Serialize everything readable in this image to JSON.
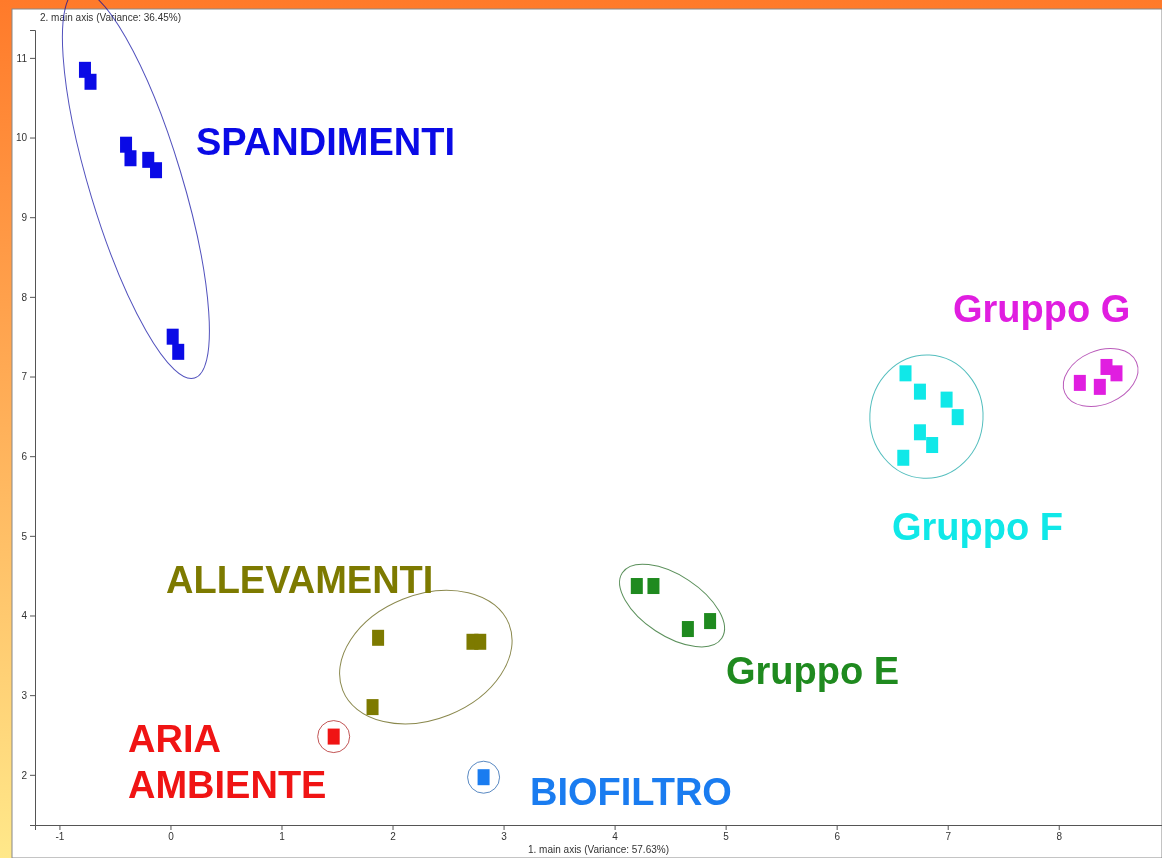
{
  "chart_data": {
    "type": "scatter",
    "xlabel": "1. main axis (Variance: 57.63%)",
    "ylabel": "2. main axis (Variance: 36.45%)",
    "xlim": [
      -1.22,
      8.93
    ],
    "ylim": [
      1.37,
      11.35
    ],
    "xticks": [
      -1,
      0,
      1,
      2,
      3,
      4,
      5,
      6,
      7,
      8
    ],
    "yticks": [
      2,
      3,
      4,
      5,
      6,
      7,
      8,
      9,
      10,
      11
    ],
    "grid": false,
    "marker": "square",
    "series": [
      {
        "name": "SPANDIMENTI",
        "color": "#0a0ae6",
        "x": [
          -0.77,
          -0.72,
          -0.4,
          -0.36,
          -0.2,
          -0.13,
          0.02,
          0.07
        ],
        "values": [
          10.85,
          10.7,
          9.91,
          9.74,
          9.72,
          9.59,
          7.5,
          7.31
        ]
      },
      {
        "name": "ALLEVAMENTI",
        "color": "#7d7a00",
        "x": [
          1.87,
          2.72,
          2.79,
          1.82
        ],
        "values": [
          3.72,
          3.67,
          3.67,
          2.85
        ]
      },
      {
        "name": "ARIA AMBIENTE",
        "color": "#f01414",
        "x": [
          1.47
        ],
        "values": [
          2.48
        ]
      },
      {
        "name": "BIOFILTRO",
        "color": "#1a7cf0",
        "x": [
          2.82
        ],
        "values": [
          1.97
        ]
      },
      {
        "name": "Gruppo E",
        "color": "#1f8a1f",
        "x": [
          4.2,
          4.35,
          4.66,
          4.86
        ],
        "values": [
          4.37,
          4.37,
          3.83,
          3.93
        ]
      },
      {
        "name": "Gruppo F",
        "color": "#10e8e8",
        "x": [
          6.62,
          6.75,
          6.99,
          7.09,
          6.75,
          6.86,
          6.6
        ],
        "values": [
          7.04,
          6.81,
          6.71,
          6.49,
          6.3,
          6.14,
          5.98
        ]
      },
      {
        "name": "Gruppo G",
        "color": "#e01ee0",
        "x": [
          8.19,
          8.43,
          8.52,
          8.37
        ],
        "values": [
          6.92,
          7.12,
          7.04,
          6.87
        ]
      }
    ]
  }
}
